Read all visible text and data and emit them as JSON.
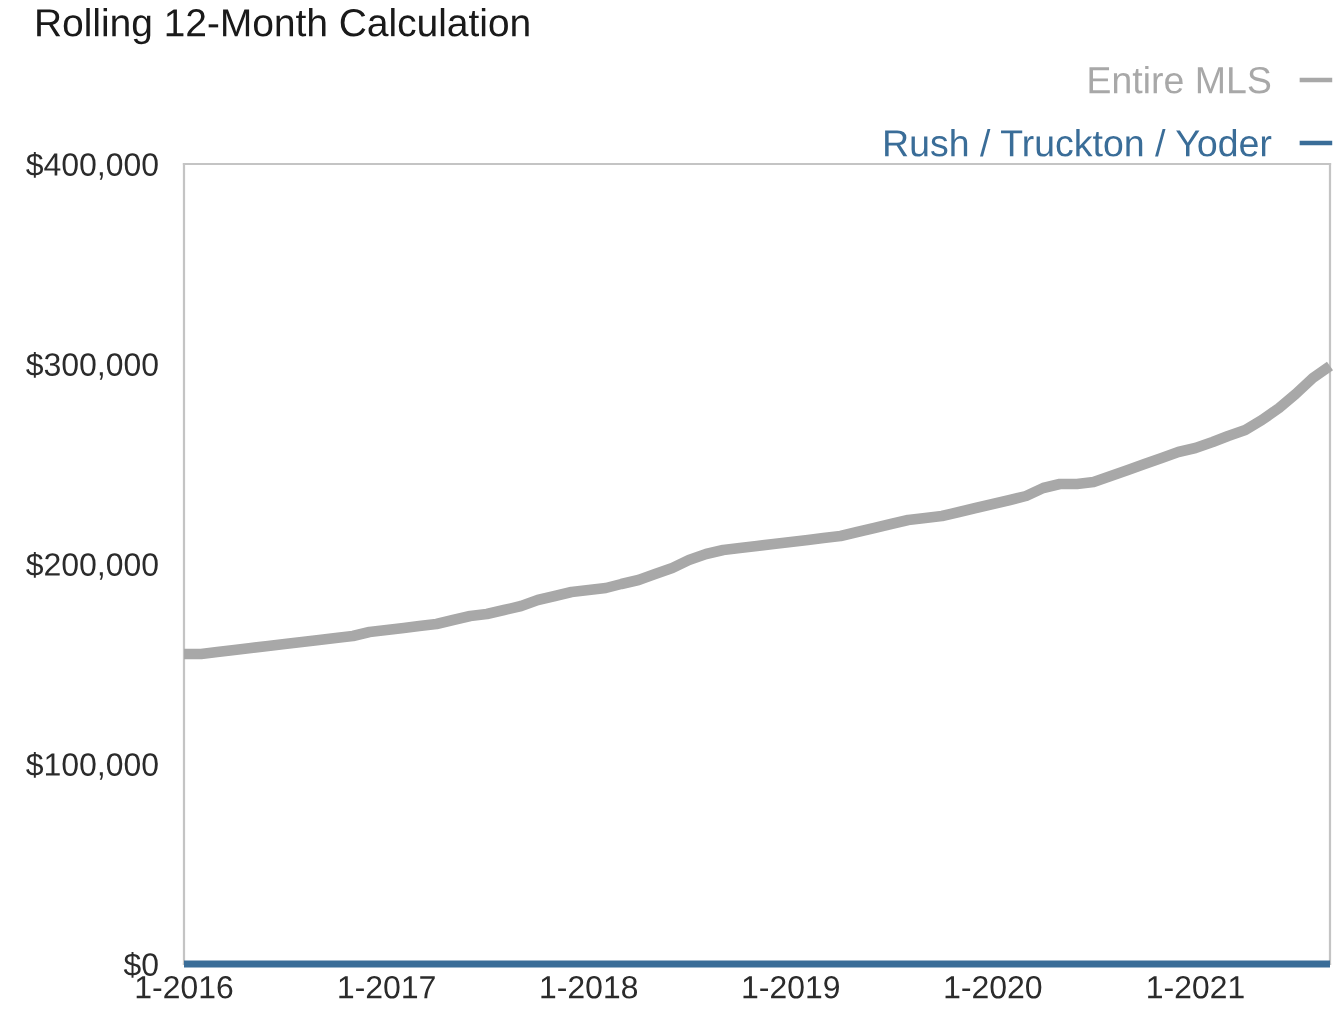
{
  "chart_data": {
    "type": "line",
    "title": "Rolling 12-Month Calculation",
    "x": [
      "2016-01",
      "2016-02",
      "2016-03",
      "2016-04",
      "2016-05",
      "2016-06",
      "2016-07",
      "2016-08",
      "2016-09",
      "2016-10",
      "2016-11",
      "2016-12",
      "2017-01",
      "2017-02",
      "2017-03",
      "2017-04",
      "2017-05",
      "2017-06",
      "2017-07",
      "2017-08",
      "2017-09",
      "2017-10",
      "2017-11",
      "2017-12",
      "2018-01",
      "2018-02",
      "2018-03",
      "2018-04",
      "2018-05",
      "2018-06",
      "2018-07",
      "2018-08",
      "2018-09",
      "2018-10",
      "2018-11",
      "2018-12",
      "2019-01",
      "2019-02",
      "2019-03",
      "2019-04",
      "2019-05",
      "2019-06",
      "2019-07",
      "2019-08",
      "2019-09",
      "2019-10",
      "2019-11",
      "2019-12",
      "2020-01",
      "2020-02",
      "2020-03",
      "2020-04",
      "2020-05",
      "2020-06",
      "2020-07",
      "2020-08",
      "2020-09",
      "2020-10",
      "2020-11",
      "2020-12",
      "2021-01",
      "2021-02",
      "2021-03",
      "2021-04",
      "2021-05",
      "2021-06",
      "2021-07",
      "2021-08",
      "2021-09"
    ],
    "series": [
      {
        "name": "Entire MLS",
        "color": "#a8a8a8",
        "values": [
          155000,
          155000,
          156000,
          157000,
          158000,
          159000,
          160000,
          161000,
          162000,
          163000,
          164000,
          166000,
          167000,
          168000,
          169000,
          170000,
          172000,
          174000,
          175000,
          177000,
          179000,
          182000,
          184000,
          186000,
          187000,
          188000,
          190000,
          192000,
          195000,
          198000,
          202000,
          205000,
          207000,
          208000,
          209000,
          210000,
          211000,
          212000,
          213000,
          214000,
          216000,
          218000,
          220000,
          222000,
          223000,
          224000,
          226000,
          228000,
          230000,
          232000,
          234000,
          238000,
          240000,
          240000,
          241000,
          244000,
          247000,
          250000,
          253000,
          256000,
          258000,
          261000,
          264000,
          267000,
          272000,
          278000,
          285000,
          293000,
          299000
        ]
      },
      {
        "name": "Rush / Truckton / Yoder",
        "color": "#3a6d98",
        "values": [
          0,
          0,
          0,
          0,
          0,
          0,
          0,
          0,
          0,
          0,
          0,
          0,
          0,
          0,
          0,
          0,
          0,
          0,
          0,
          0,
          0,
          0,
          0,
          0,
          0,
          0,
          0,
          0,
          0,
          0,
          0,
          0,
          0,
          0,
          0,
          0,
          0,
          0,
          0,
          0,
          0,
          0,
          0,
          0,
          0,
          0,
          0,
          0,
          0,
          0,
          0,
          0,
          0,
          0,
          0,
          0,
          0,
          0,
          0,
          0,
          0,
          0,
          0,
          0,
          0,
          0,
          0,
          0,
          0
        ]
      }
    ],
    "xlim": [
      "2016-01",
      "2021-09"
    ],
    "xticks": [
      {
        "value": "2016-01",
        "label": "1-2016"
      },
      {
        "value": "2017-01",
        "label": "1-2017"
      },
      {
        "value": "2018-01",
        "label": "1-2018"
      },
      {
        "value": "2019-01",
        "label": "1-2019"
      },
      {
        "value": "2020-01",
        "label": "1-2020"
      },
      {
        "value": "2021-01",
        "label": "1-2021"
      }
    ],
    "ylim": [
      0,
      400000
    ],
    "yticks": [
      {
        "value": 0,
        "label": "$0"
      },
      {
        "value": 100000,
        "label": "$100,000"
      },
      {
        "value": 200000,
        "label": "$200,000"
      },
      {
        "value": 300000,
        "label": "$300,000"
      },
      {
        "value": 400000,
        "label": "$400,000"
      }
    ],
    "legend": "top right"
  }
}
